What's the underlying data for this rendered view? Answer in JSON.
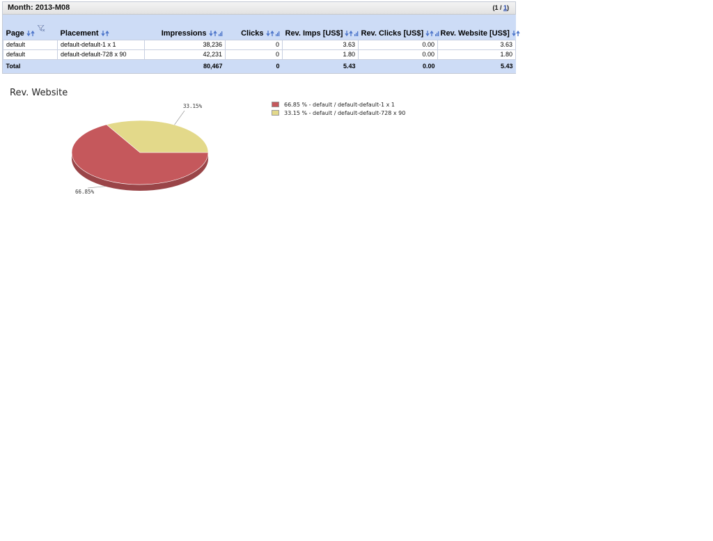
{
  "report": {
    "title": "Month: 2013-M08",
    "pager": {
      "prefix": "(1 / ",
      "link": "1",
      "suffix": ")"
    },
    "columns": [
      {
        "label": "Page",
        "align": "left",
        "sort": "arrows",
        "filter": true
      },
      {
        "label": "Placement",
        "align": "left",
        "sort": "arrows",
        "filter": false
      },
      {
        "label": "Impressions",
        "align": "right",
        "sort": "arrows-bar",
        "filter": false
      },
      {
        "label": "Clicks",
        "align": "right",
        "sort": "arrows-bar",
        "filter": false
      },
      {
        "label": "Rev. Imps [US$]",
        "align": "right",
        "sort": "arrows-bar",
        "filter": false
      },
      {
        "label": "Rev. Clicks [US$]",
        "align": "right",
        "sort": "arrows-bar",
        "filter": false
      },
      {
        "label": "Rev. Website [US$]",
        "align": "right",
        "sort": "arrows",
        "filter": false
      }
    ],
    "rows": [
      {
        "page": "default",
        "placement": "default-default-1 x 1",
        "impressions": "38,236",
        "clicks": "0",
        "rev_imps": "3.63",
        "rev_clicks": "0.00",
        "rev_website": "3.63"
      },
      {
        "page": "default",
        "placement": "default-default-728 x 90",
        "impressions": "42,231",
        "clicks": "0",
        "rev_imps": "1.80",
        "rev_clicks": "0.00",
        "rev_website": "1.80"
      }
    ],
    "total": {
      "label": "Total",
      "placement": "",
      "impressions": "80,467",
      "clicks": "0",
      "rev_imps": "5.43",
      "rev_clicks": "0.00",
      "rev_website": "5.43"
    }
  },
  "chart_data": {
    "type": "pie",
    "title": "Rev. Website",
    "categories": [
      "default / default-default-1 x 1",
      "default / default-default-728 x 90"
    ],
    "values": [
      66.85,
      33.15
    ],
    "colors": [
      "#c5585c",
      "#e3d98a"
    ],
    "slice_labels": [
      "66.85%",
      "33.15%"
    ],
    "legend": {
      "placement": "right",
      "entries": [
        "66.85 % - default / default-default-1 x 1",
        "33.15 % - default / default-default-728 x 90"
      ]
    }
  }
}
